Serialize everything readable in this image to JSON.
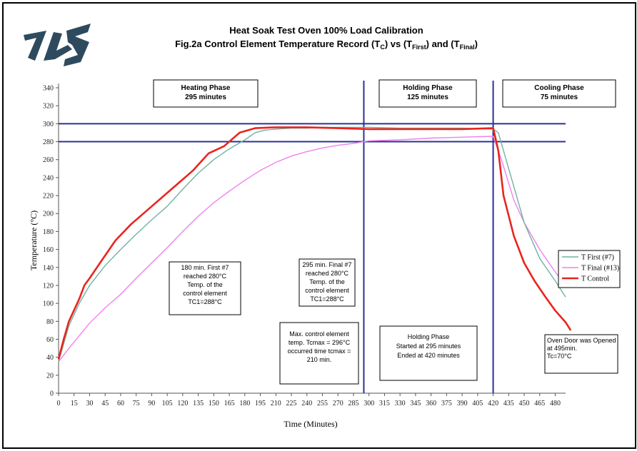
{
  "title_line1": "Heat Soak Test Oven  100% Load Calibration",
  "title_line2_prefix": "Fig.2a Control Element Temperature Record (T",
  "title_line2_sub1": "C",
  "title_line2_mid": ") vs (T",
  "title_line2_sub2": "First",
  "title_line2_mid2": ") and (T",
  "title_line2_sub3": "Final",
  "title_line2_end": ")",
  "logo_text": "JAS",
  "colors": {
    "control": "#e8251e",
    "first": "#6fb3a2",
    "final": "#ee82ee",
    "reference": "#2e3192",
    "logo": "#2e4a5e"
  },
  "phases": [
    {
      "name": "Heating Phase",
      "duration": "295 minutes"
    },
    {
      "name": "Holding Phase",
      "duration": "125 minutes"
    },
    {
      "name": "Cooling Phase",
      "duration": "75 minutes"
    }
  ],
  "annotations": {
    "first_reached": [
      "180 min. First #7",
      "reached 280°C",
      "Temp. of the",
      "control element",
      "TC1=288°C"
    ],
    "final_reached": [
      "295 min. Final #7",
      "reached 280°C",
      "Temp. of the",
      "control element",
      "TC1=288°C"
    ],
    "max_control": [
      "Max. control element",
      "temp. Tcmax = 296°C",
      "occurred time tcmax =",
      "210 min."
    ],
    "holding": [
      "Holding Phase",
      "Started at 295 minutes",
      "Ended at 420 minutes"
    ],
    "door": [
      "Oven Door was Opened",
      "at 495min.",
      "Tc=70°C"
    ]
  },
  "chart_data": {
    "type": "line",
    "xlabel": "Time (Minutes)",
    "ylabel": "Temperature (°C)",
    "xlim": [
      0,
      490
    ],
    "ylim": [
      0,
      340
    ],
    "x_ticks": [
      0,
      15,
      30,
      45,
      60,
      75,
      90,
      105,
      120,
      135,
      150,
      165,
      180,
      195,
      210,
      225,
      240,
      255,
      270,
      285,
      300,
      315,
      330,
      345,
      360,
      375,
      390,
      405,
      420,
      435,
      450,
      465,
      480
    ],
    "y_ticks": [
      0,
      20,
      40,
      60,
      80,
      100,
      120,
      140,
      160,
      180,
      200,
      220,
      240,
      260,
      280,
      300,
      320,
      340
    ],
    "legend_position": "right",
    "series": [
      {
        "name": "T First (#7)",
        "color_key": "first",
        "x": [
          0,
          5,
          10,
          20,
          30,
          45,
          60,
          75,
          90,
          105,
          120,
          135,
          150,
          165,
          180,
          190,
          200,
          210,
          225,
          240,
          255,
          270,
          285,
          300,
          330,
          360,
          390,
          420,
          425,
          435,
          450,
          465,
          480,
          490
        ],
        "y": [
          35,
          55,
          75,
          100,
          120,
          142,
          160,
          177,
          193,
          208,
          227,
          245,
          260,
          272,
          282,
          290,
          293,
          294,
          295,
          295,
          296,
          296,
          296,
          296,
          295,
          295,
          295,
          294,
          290,
          250,
          190,
          150,
          125,
          107
        ]
      },
      {
        "name": "T Final (#13)",
        "color_key": "final",
        "x": [
          0,
          10,
          20,
          30,
          45,
          60,
          75,
          90,
          105,
          120,
          135,
          150,
          165,
          180,
          195,
          210,
          225,
          240,
          255,
          270,
          285,
          295,
          300,
          330,
          360,
          390,
          420,
          428,
          440,
          450,
          465,
          480,
          490
        ],
        "y": [
          35,
          50,
          64,
          78,
          95,
          110,
          128,
          145,
          162,
          180,
          197,
          212,
          225,
          237,
          248,
          257,
          264,
          269,
          273,
          276,
          278,
          280,
          281,
          282,
          284,
          285,
          286,
          260,
          215,
          190,
          160,
          135,
          120
        ]
      },
      {
        "name": "T Control",
        "color_key": "control",
        "x": [
          0,
          5,
          10,
          20,
          25,
          30,
          40,
          55,
          70,
          90,
          110,
          130,
          145,
          160,
          175,
          190,
          210,
          240,
          270,
          300,
          330,
          360,
          390,
          420,
          425,
          430,
          440,
          450,
          460,
          470,
          480,
          490,
          495
        ],
        "y": [
          38,
          60,
          80,
          105,
          120,
          128,
          145,
          170,
          188,
          208,
          228,
          248,
          267,
          275,
          290,
          295,
          296,
          296,
          295,
          294,
          294,
          294,
          294,
          295,
          270,
          220,
          175,
          145,
          125,
          108,
          92,
          79,
          70
        ]
      }
    ],
    "reference_lines": {
      "horizontal": [
        300,
        280
      ],
      "vertical": [
        295,
        420
      ]
    }
  }
}
